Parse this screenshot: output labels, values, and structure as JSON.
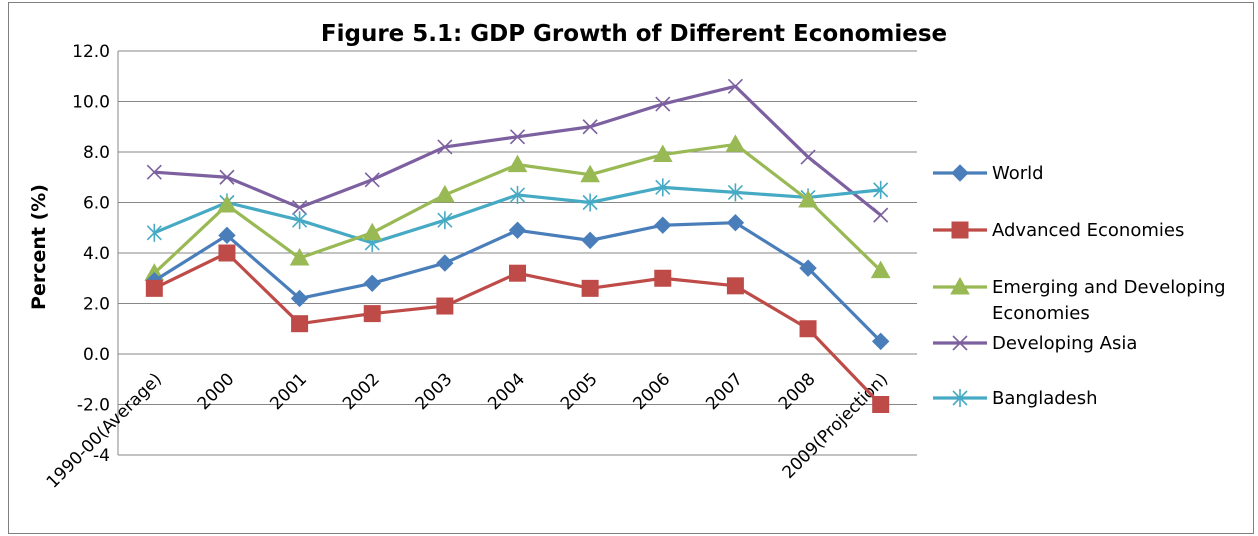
{
  "chart_data": {
    "type": "line",
    "title": "Figure 5.1: GDP Growth of Different Economiese",
    "xlabel": "",
    "ylabel": "Percent (%)",
    "ylim": [
      -4,
      12
    ],
    "yticks": [
      "12.0",
      "10.0",
      "8.0",
      "6.0",
      "4.0",
      "2.0",
      "0.0",
      "-2.0",
      "-4"
    ],
    "grid": "horizontal",
    "legend_position": "right",
    "categories": [
      "1990-00(Average)",
      "2000",
      "2001",
      "2002",
      "2003",
      "2004",
      "2005",
      "2006",
      "2007",
      "2008",
      "2009(Projection)"
    ],
    "series": [
      {
        "name": "World",
        "color": "#4a7ebb",
        "marker": "diamond",
        "values": [
          2.9,
          4.7,
          2.2,
          2.8,
          3.6,
          4.9,
          4.5,
          5.1,
          5.2,
          3.4,
          0.5
        ]
      },
      {
        "name": "Advanced Economies",
        "color": "#be4b48",
        "marker": "square",
        "values": [
          2.6,
          4.0,
          1.2,
          1.6,
          1.9,
          3.2,
          2.6,
          3.0,
          2.7,
          1.0,
          -2.0
        ]
      },
      {
        "name": "Emerging and Developing Economies",
        "color": "#98b954",
        "marker": "triangle",
        "values": [
          3.2,
          5.9,
          3.8,
          4.8,
          6.3,
          7.5,
          7.1,
          7.9,
          8.3,
          6.1,
          3.3
        ]
      },
      {
        "name": "Developing Asia",
        "color": "#7d60a0",
        "marker": "x",
        "values": [
          7.2,
          7.0,
          5.8,
          6.9,
          8.2,
          8.6,
          9.0,
          9.9,
          10.6,
          7.8,
          5.5
        ]
      },
      {
        "name": "Bangladesh",
        "color": "#46aac4",
        "marker": "star",
        "values": [
          4.8,
          6.0,
          5.3,
          4.4,
          5.3,
          6.3,
          6.0,
          6.6,
          6.4,
          6.2,
          6.5
        ]
      }
    ]
  }
}
